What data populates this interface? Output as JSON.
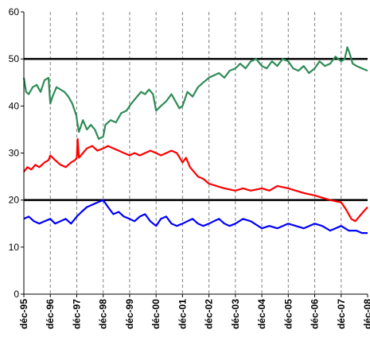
{
  "chart_data": {
    "type": "line",
    "title": "",
    "xlabel": "",
    "ylabel": "",
    "x_domain": [
      1995.917,
      2008.917
    ],
    "ylim": [
      0,
      60
    ],
    "y_ticks": [
      0,
      10,
      20,
      30,
      40,
      50,
      60
    ],
    "x_ticks": [
      {
        "label": "déc-95",
        "x": 1995.917
      },
      {
        "label": "déc-96",
        "x": 1996.917
      },
      {
        "label": "déc-97",
        "x": 1997.917
      },
      {
        "label": "déc-98",
        "x": 1998.917
      },
      {
        "label": "déc-99",
        "x": 1999.917
      },
      {
        "label": "déc-00",
        "x": 2000.917
      },
      {
        "label": "déc-01",
        "x": 2001.917
      },
      {
        "label": "déc-02",
        "x": 2002.917
      },
      {
        "label": "déc-03",
        "x": 2003.917
      },
      {
        "label": "déc-04",
        "x": 2004.917
      },
      {
        "label": "déc-05",
        "x": 2005.917
      },
      {
        "label": "déc-06",
        "x": 2006.917
      },
      {
        "label": "déc-07",
        "x": 2007.917
      },
      {
        "label": "déc-08",
        "x": 2008.917
      }
    ],
    "grid": {
      "vertical": true,
      "horizontal": false,
      "style": "dashed"
    },
    "reference_lines": [
      20,
      50
    ],
    "legend": "none",
    "series": [
      {
        "color": "#2e8b57",
        "points": [
          [
            1995.917,
            46.0
          ],
          [
            1996.0,
            43.0
          ],
          [
            1996.1,
            42.5
          ],
          [
            1996.25,
            44.0
          ],
          [
            1996.4,
            44.5
          ],
          [
            1996.55,
            43.0
          ],
          [
            1996.7,
            45.5
          ],
          [
            1996.85,
            46.0
          ],
          [
            1996.917,
            40.5
          ],
          [
            1997.0,
            42.0
          ],
          [
            1997.15,
            44.0
          ],
          [
            1997.3,
            43.5
          ],
          [
            1997.45,
            43.0
          ],
          [
            1997.6,
            42.0
          ],
          [
            1997.75,
            40.5
          ],
          [
            1997.9,
            38.0
          ],
          [
            1997.95,
            36.0
          ],
          [
            1998.0,
            34.5
          ],
          [
            1998.15,
            37.0
          ],
          [
            1998.3,
            35.0
          ],
          [
            1998.45,
            36.0
          ],
          [
            1998.6,
            35.0
          ],
          [
            1998.75,
            33.0
          ],
          [
            1998.917,
            33.5
          ],
          [
            1999.0,
            36.0
          ],
          [
            1999.2,
            37.0
          ],
          [
            1999.4,
            36.5
          ],
          [
            1999.6,
            38.5
          ],
          [
            1999.8,
            39.0
          ],
          [
            1999.917,
            40.0
          ],
          [
            2000.05,
            41.0
          ],
          [
            2000.2,
            42.0
          ],
          [
            2000.35,
            43.0
          ],
          [
            2000.5,
            42.5
          ],
          [
            2000.65,
            43.5
          ],
          [
            2000.8,
            42.5
          ],
          [
            2000.917,
            39.0
          ],
          [
            2001.1,
            40.0
          ],
          [
            2001.3,
            41.0
          ],
          [
            2001.5,
            42.5
          ],
          [
            2001.65,
            41.0
          ],
          [
            2001.8,
            39.5
          ],
          [
            2001.917,
            40.0
          ],
          [
            2002.1,
            43.0
          ],
          [
            2002.3,
            42.0
          ],
          [
            2002.5,
            44.0
          ],
          [
            2002.7,
            45.0
          ],
          [
            2002.917,
            46.0
          ],
          [
            2003.1,
            46.5
          ],
          [
            2003.3,
            47.0
          ],
          [
            2003.5,
            46.0
          ],
          [
            2003.7,
            47.5
          ],
          [
            2003.917,
            48.0
          ],
          [
            2004.1,
            49.0
          ],
          [
            2004.3,
            48.0
          ],
          [
            2004.5,
            49.5
          ],
          [
            2004.7,
            50.0
          ],
          [
            2004.917,
            48.5
          ],
          [
            2005.1,
            48.0
          ],
          [
            2005.3,
            49.5
          ],
          [
            2005.5,
            48.5
          ],
          [
            2005.7,
            50.0
          ],
          [
            2005.917,
            49.5
          ],
          [
            2006.1,
            48.0
          ],
          [
            2006.3,
            47.5
          ],
          [
            2006.5,
            48.5
          ],
          [
            2006.7,
            47.0
          ],
          [
            2006.917,
            48.0
          ],
          [
            2007.1,
            49.5
          ],
          [
            2007.3,
            48.5
          ],
          [
            2007.5,
            49.0
          ],
          [
            2007.7,
            50.5
          ],
          [
            2007.917,
            49.5
          ],
          [
            2008.05,
            50.0
          ],
          [
            2008.15,
            52.5
          ],
          [
            2008.25,
            51.0
          ],
          [
            2008.35,
            49.0
          ],
          [
            2008.5,
            48.5
          ],
          [
            2008.7,
            48.0
          ],
          [
            2008.917,
            47.5
          ]
        ]
      },
      {
        "color": "#ff0000",
        "points": [
          [
            1995.917,
            26.0
          ],
          [
            1996.05,
            27.0
          ],
          [
            1996.2,
            26.5
          ],
          [
            1996.35,
            27.5
          ],
          [
            1996.5,
            27.0
          ],
          [
            1996.7,
            28.0
          ],
          [
            1996.85,
            28.5
          ],
          [
            1996.917,
            29.5
          ],
          [
            1997.1,
            28.5
          ],
          [
            1997.3,
            27.5
          ],
          [
            1997.5,
            27.0
          ],
          [
            1997.7,
            28.0
          ],
          [
            1997.85,
            28.5
          ],
          [
            1997.917,
            29.0
          ],
          [
            1997.95,
            33.0
          ],
          [
            1998.0,
            29.0
          ],
          [
            1998.15,
            30.0
          ],
          [
            1998.3,
            31.0
          ],
          [
            1998.5,
            31.5
          ],
          [
            1998.7,
            30.5
          ],
          [
            1998.917,
            31.0
          ],
          [
            1999.1,
            31.5
          ],
          [
            1999.3,
            31.0
          ],
          [
            1999.5,
            30.5
          ],
          [
            1999.7,
            30.0
          ],
          [
            1999.917,
            29.5
          ],
          [
            2000.1,
            30.0
          ],
          [
            2000.3,
            29.5
          ],
          [
            2000.5,
            30.0
          ],
          [
            2000.7,
            30.5
          ],
          [
            2000.917,
            30.0
          ],
          [
            2001.1,
            29.5
          ],
          [
            2001.3,
            30.0
          ],
          [
            2001.5,
            30.5
          ],
          [
            2001.7,
            30.0
          ],
          [
            2001.917,
            28.0
          ],
          [
            2002.05,
            29.0
          ],
          [
            2002.2,
            27.0
          ],
          [
            2002.35,
            26.0
          ],
          [
            2002.5,
            25.0
          ],
          [
            2002.7,
            24.5
          ],
          [
            2002.917,
            23.5
          ],
          [
            2003.2,
            23.0
          ],
          [
            2003.5,
            22.5
          ],
          [
            2003.917,
            22.0
          ],
          [
            2004.2,
            22.5
          ],
          [
            2004.5,
            22.0
          ],
          [
            2004.917,
            22.5
          ],
          [
            2005.2,
            22.0
          ],
          [
            2005.5,
            23.0
          ],
          [
            2005.917,
            22.5
          ],
          [
            2006.2,
            22.0
          ],
          [
            2006.5,
            21.5
          ],
          [
            2006.917,
            21.0
          ],
          [
            2007.2,
            20.5
          ],
          [
            2007.5,
            20.0
          ],
          [
            2007.917,
            19.5
          ],
          [
            2008.1,
            18.0
          ],
          [
            2008.3,
            16.0
          ],
          [
            2008.45,
            15.5
          ],
          [
            2008.6,
            16.5
          ],
          [
            2008.75,
            17.5
          ],
          [
            2008.917,
            18.5
          ]
        ]
      },
      {
        "color": "#0000ff",
        "points": [
          [
            1995.917,
            16.0
          ],
          [
            1996.1,
            16.5
          ],
          [
            1996.3,
            15.5
          ],
          [
            1996.5,
            15.0
          ],
          [
            1996.7,
            15.5
          ],
          [
            1996.917,
            16.0
          ],
          [
            1997.1,
            15.0
          ],
          [
            1997.3,
            15.5
          ],
          [
            1997.5,
            16.0
          ],
          [
            1997.7,
            15.0
          ],
          [
            1997.917,
            16.5
          ],
          [
            1998.1,
            17.5
          ],
          [
            1998.3,
            18.5
          ],
          [
            1998.5,
            19.0
          ],
          [
            1998.7,
            19.5
          ],
          [
            1998.917,
            20.0
          ],
          [
            1999.1,
            18.5
          ],
          [
            1999.3,
            17.0
          ],
          [
            1999.5,
            17.5
          ],
          [
            1999.7,
            16.5
          ],
          [
            1999.917,
            16.0
          ],
          [
            2000.1,
            15.5
          ],
          [
            2000.3,
            16.5
          ],
          [
            2000.5,
            17.0
          ],
          [
            2000.7,
            15.5
          ],
          [
            2000.917,
            14.5
          ],
          [
            2001.1,
            16.0
          ],
          [
            2001.3,
            16.5
          ],
          [
            2001.5,
            15.0
          ],
          [
            2001.7,
            14.5
          ],
          [
            2001.917,
            15.0
          ],
          [
            2002.1,
            15.5
          ],
          [
            2002.3,
            16.0
          ],
          [
            2002.5,
            15.0
          ],
          [
            2002.7,
            14.5
          ],
          [
            2002.917,
            15.0
          ],
          [
            2003.1,
            15.5
          ],
          [
            2003.3,
            16.0
          ],
          [
            2003.5,
            15.0
          ],
          [
            2003.7,
            14.5
          ],
          [
            2003.917,
            15.0
          ],
          [
            2004.2,
            16.0
          ],
          [
            2004.5,
            15.5
          ],
          [
            2004.917,
            14.0
          ],
          [
            2005.2,
            14.5
          ],
          [
            2005.5,
            14.0
          ],
          [
            2005.917,
            15.0
          ],
          [
            2006.2,
            14.5
          ],
          [
            2006.5,
            14.0
          ],
          [
            2006.917,
            15.0
          ],
          [
            2007.2,
            14.5
          ],
          [
            2007.5,
            13.5
          ],
          [
            2007.917,
            14.5
          ],
          [
            2008.2,
            13.5
          ],
          [
            2008.5,
            13.5
          ],
          [
            2008.7,
            13.0
          ],
          [
            2008.917,
            13.0
          ]
        ]
      }
    ]
  }
}
